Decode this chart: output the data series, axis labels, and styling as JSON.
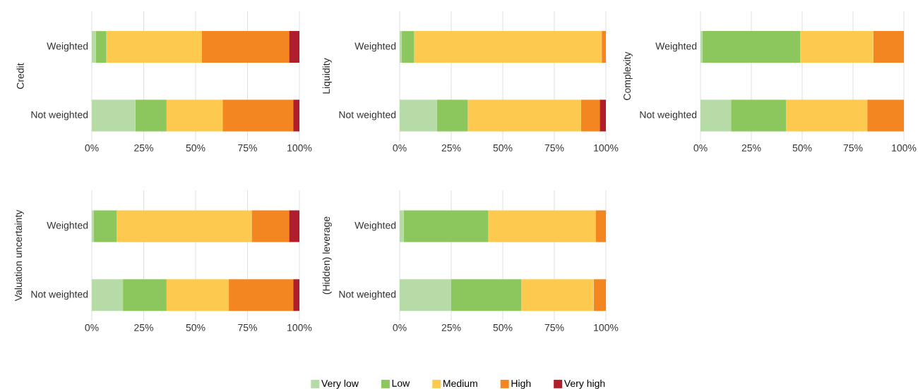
{
  "chart_data": [
    {
      "type": "bar",
      "orientation": "horizontal",
      "stacked": true,
      "ylabel": "Credit",
      "categories": [
        "Weighted",
        "Not weighted"
      ],
      "xlim": [
        0,
        100
      ],
      "xticks": [
        {
          "value": 0,
          "label": "0%"
        },
        {
          "value": 25,
          "label": "25%"
        },
        {
          "value": 50,
          "label": "50%"
        },
        {
          "value": 75,
          "label": "75%"
        },
        {
          "value": 100,
          "label": "100%"
        }
      ],
      "grid": "x",
      "series": [
        {
          "color": "#b7dba6",
          "values": [
            2,
            21
          ]
        },
        {
          "color": "#8bc75c",
          "values": [
            5,
            15
          ]
        },
        {
          "color": "#fdca4f",
          "values": [
            46,
            27
          ]
        },
        {
          "color": "#f38621",
          "values": [
            42,
            34
          ]
        },
        {
          "color": "#b01e2b",
          "values": [
            5,
            3
          ]
        }
      ]
    },
    {
      "type": "bar",
      "orientation": "horizontal",
      "stacked": true,
      "ylabel": "Liquidity",
      "categories": [
        "Weighted",
        "Not weighted"
      ],
      "xlim": [
        0,
        100
      ],
      "xticks": [
        {
          "value": 0,
          "label": "0%"
        },
        {
          "value": 25,
          "label": "25%"
        },
        {
          "value": 50,
          "label": "50%"
        },
        {
          "value": 75,
          "label": "75%"
        },
        {
          "value": 100,
          "label": "100%"
        }
      ],
      "grid": "x",
      "series": [
        {
          "color": "#b7dba6",
          "values": [
            1,
            18
          ]
        },
        {
          "color": "#8bc75c",
          "values": [
            6,
            15
          ]
        },
        {
          "color": "#fdca4f",
          "values": [
            91,
            55
          ]
        },
        {
          "color": "#f38621",
          "values": [
            2,
            9
          ]
        },
        {
          "color": "#b01e2b",
          "values": [
            0,
            3
          ]
        }
      ]
    },
    {
      "type": "bar",
      "orientation": "horizontal",
      "stacked": true,
      "ylabel": "Complexity",
      "categories": [
        "Weighted",
        "Not weighted"
      ],
      "xlim": [
        0,
        100
      ],
      "xticks": [
        {
          "value": 0,
          "label": "0%"
        },
        {
          "value": 25,
          "label": "25%"
        },
        {
          "value": 50,
          "label": "50%"
        },
        {
          "value": 75,
          "label": "75%"
        },
        {
          "value": 100,
          "label": "100%"
        }
      ],
      "grid": "x",
      "series": [
        {
          "color": "#b7dba6",
          "values": [
            1,
            15
          ]
        },
        {
          "color": "#8bc75c",
          "values": [
            48,
            27
          ]
        },
        {
          "color": "#fdca4f",
          "values": [
            36,
            40
          ]
        },
        {
          "color": "#f38621",
          "values": [
            15,
            18
          ]
        },
        {
          "color": "#b01e2b",
          "values": [
            0,
            0
          ]
        }
      ]
    },
    {
      "type": "bar",
      "orientation": "horizontal",
      "stacked": true,
      "ylabel": "Valuation uncertainty",
      "categories": [
        "Weighted",
        "Not weighted"
      ],
      "xlim": [
        0,
        100
      ],
      "xticks": [
        {
          "value": 0,
          "label": "0%"
        },
        {
          "value": 25,
          "label": "25%"
        },
        {
          "value": 50,
          "label": "50%"
        },
        {
          "value": 75,
          "label": "75%"
        },
        {
          "value": 100,
          "label": "100%"
        }
      ],
      "grid": "x",
      "series": [
        {
          "color": "#b7dba6",
          "values": [
            1,
            15
          ]
        },
        {
          "color": "#8bc75c",
          "values": [
            11,
            21
          ]
        },
        {
          "color": "#fdca4f",
          "values": [
            65,
            30
          ]
        },
        {
          "color": "#f38621",
          "values": [
            18,
            31
          ]
        },
        {
          "color": "#b01e2b",
          "values": [
            5,
            3
          ]
        }
      ]
    },
    {
      "type": "bar",
      "orientation": "horizontal",
      "stacked": true,
      "ylabel": "(Hidden) leverage",
      "categories": [
        "Weighted",
        "Not weighted"
      ],
      "xlim": [
        0,
        100
      ],
      "xticks": [
        {
          "value": 0,
          "label": "0%"
        },
        {
          "value": 25,
          "label": "25%"
        },
        {
          "value": 50,
          "label": "50%"
        },
        {
          "value": 75,
          "label": "75%"
        },
        {
          "value": 100,
          "label": "100%"
        }
      ],
      "grid": "x",
      "legend": "bottom",
      "series": [
        {
          "name": "Very low",
          "color": "#b7dba6",
          "values": [
            2,
            25
          ]
        },
        {
          "name": "Low",
          "color": "#8bc75c",
          "values": [
            41,
            34
          ]
        },
        {
          "name": "Medium",
          "color": "#fdca4f",
          "values": [
            52,
            35
          ]
        },
        {
          "name": "High",
          "color": "#f38621",
          "values": [
            5,
            6
          ]
        },
        {
          "name": "Very high",
          "color": "#b01e2b",
          "values": [
            0,
            0
          ]
        }
      ]
    }
  ]
}
